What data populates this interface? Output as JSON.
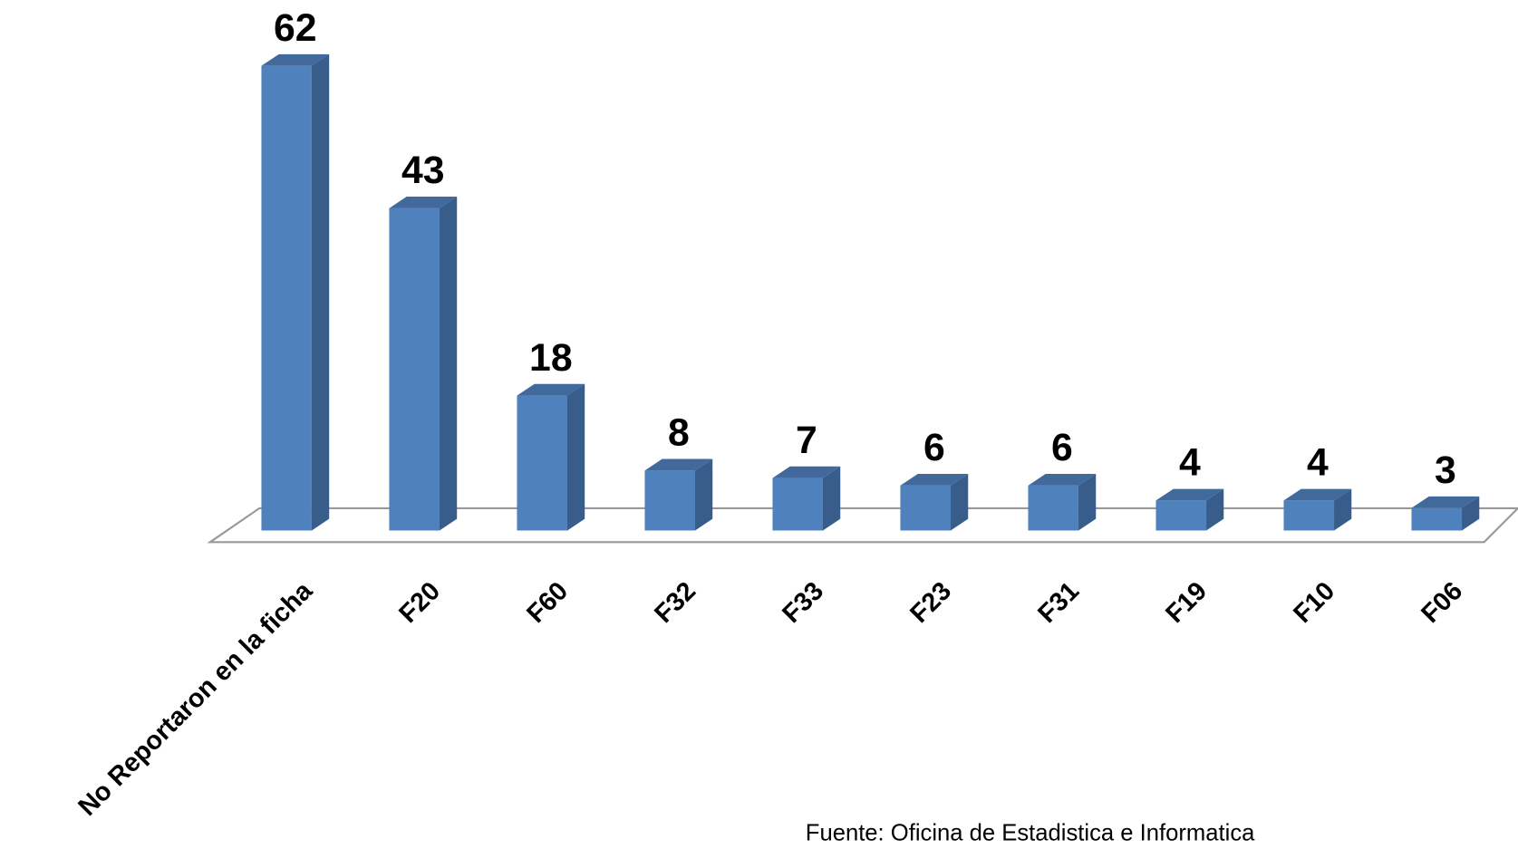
{
  "chart_data": {
    "type": "bar3d",
    "categories": [
      "No Reportaron en la ficha",
      "F20",
      "F60",
      "F32",
      "F33",
      "F23",
      "F31",
      "F19",
      "F10",
      "F06"
    ],
    "values": [
      62,
      43,
      18,
      8,
      7,
      6,
      6,
      4,
      4,
      3
    ],
    "color": "#4f81bd",
    "annotation": "Fuente: Oficina de Estadistica e Informatica"
  }
}
